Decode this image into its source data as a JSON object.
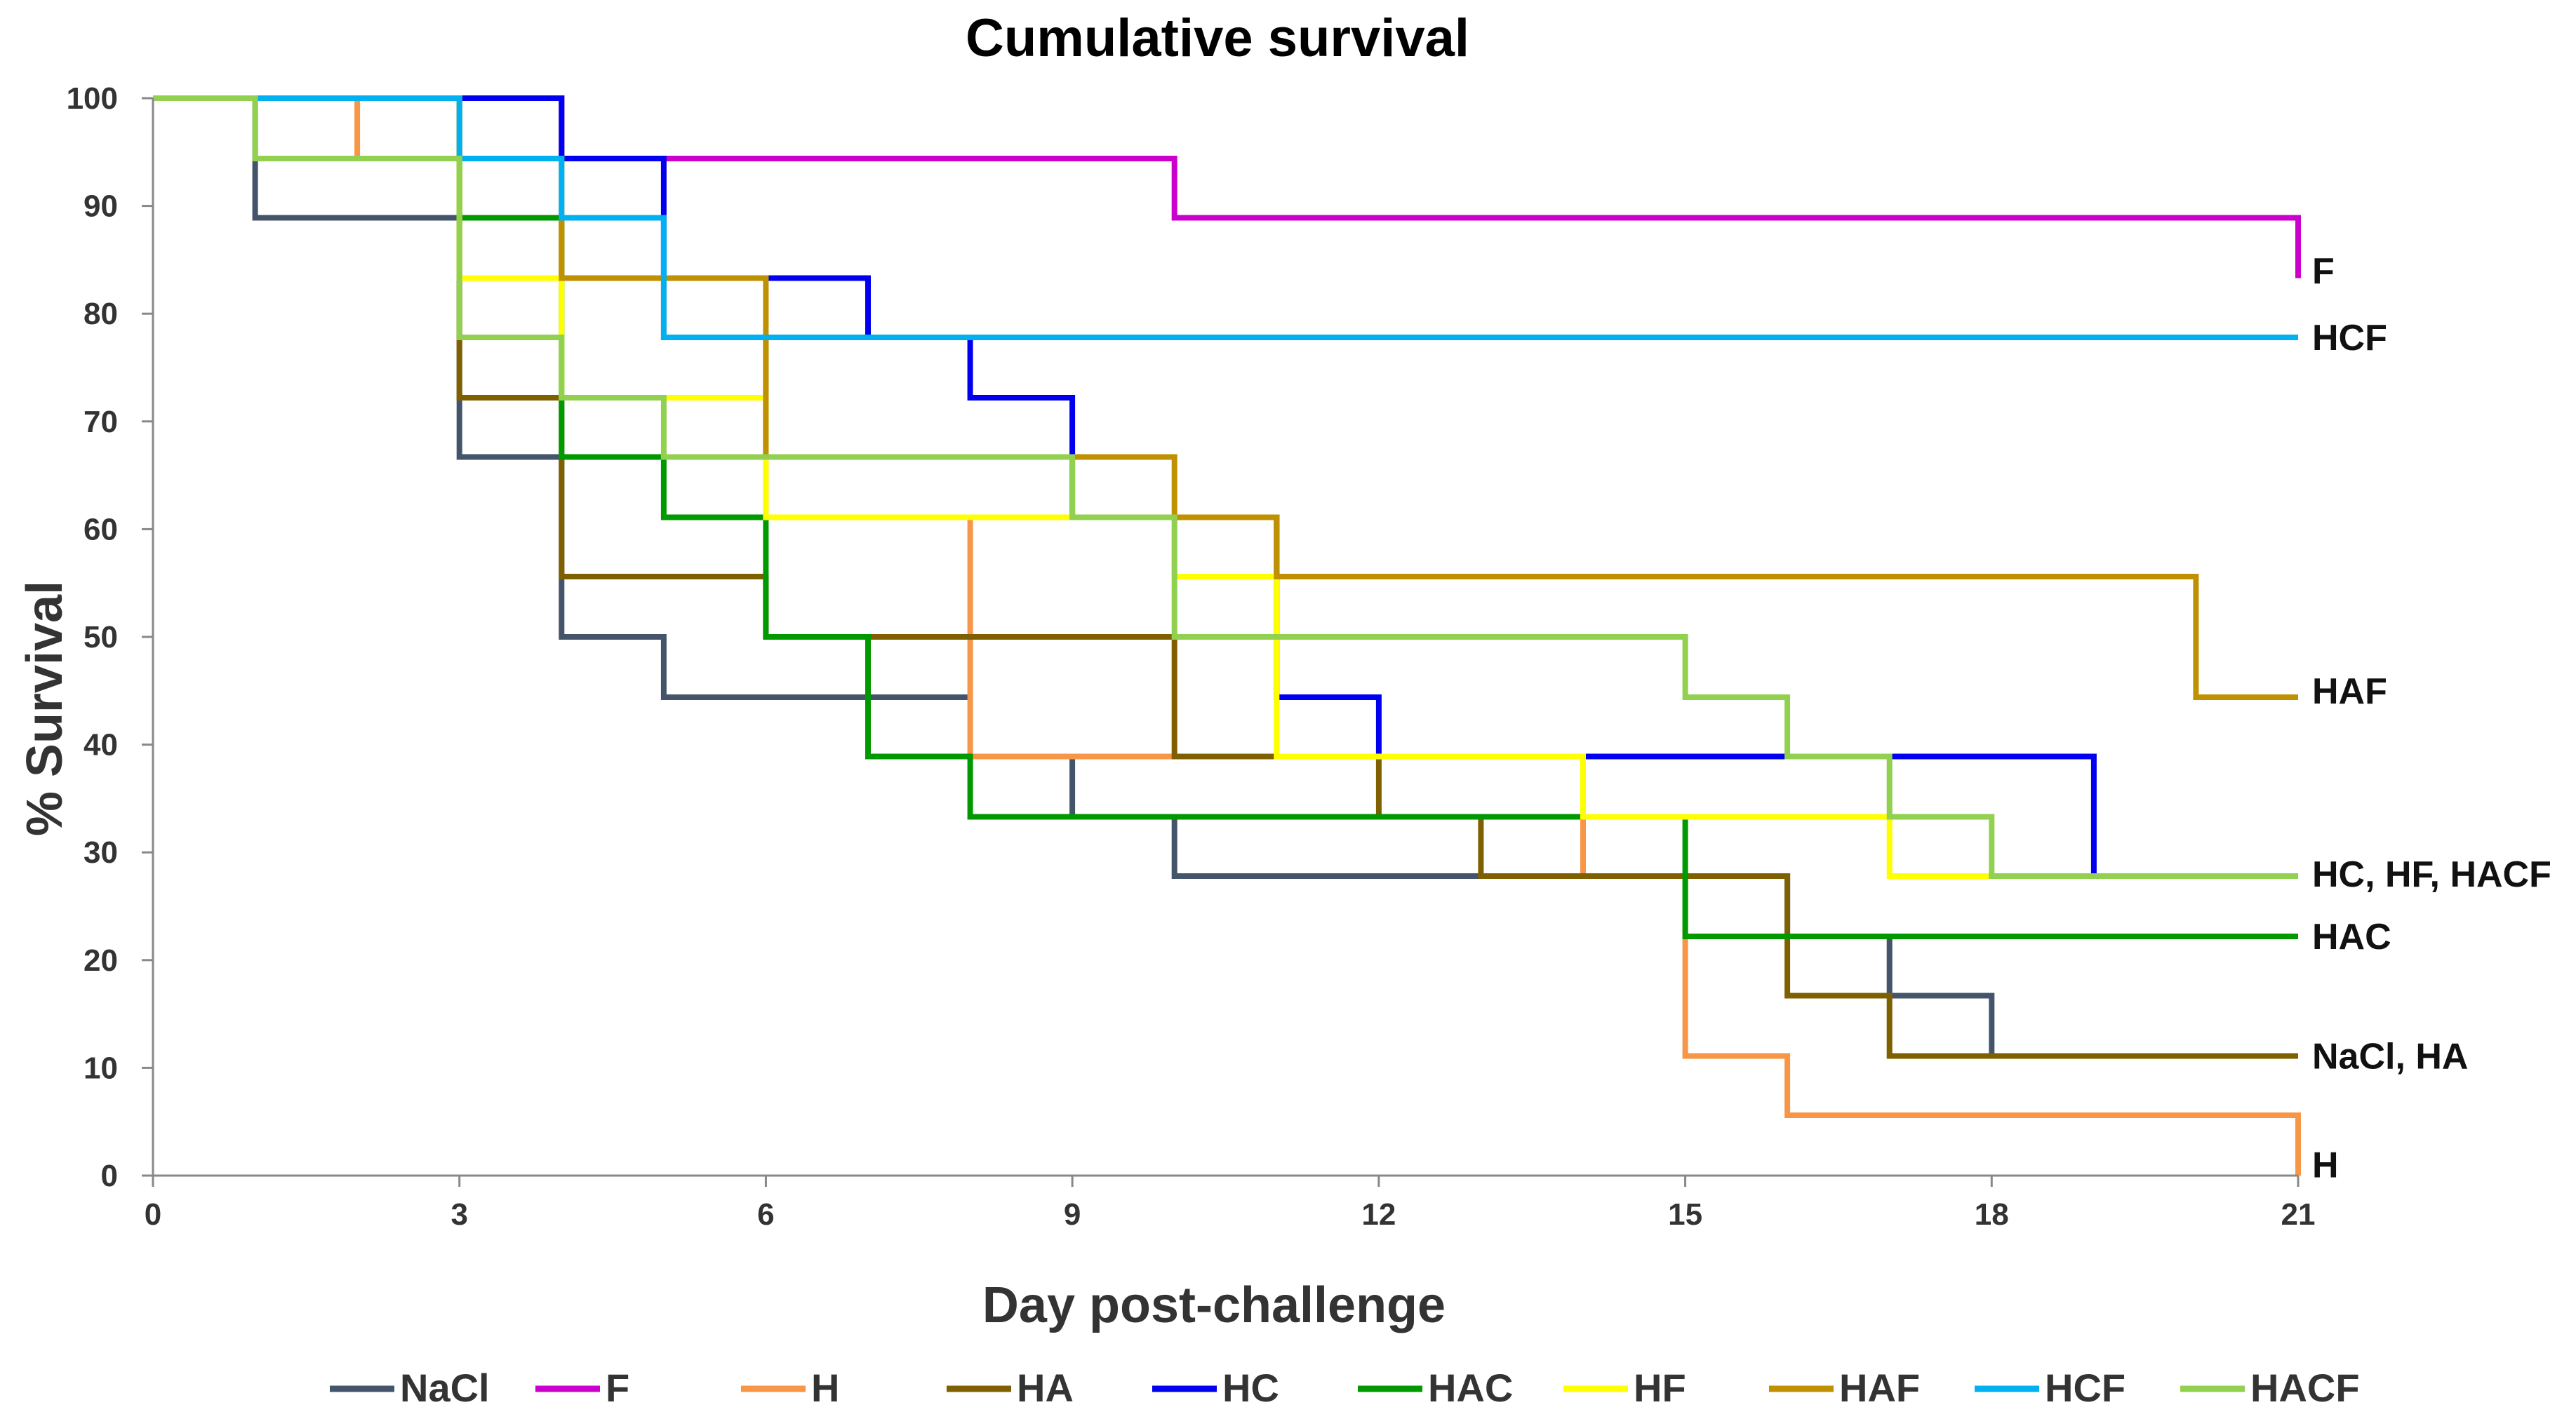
{
  "chart_data": {
    "type": "line",
    "step": true,
    "title": "Cumulative survival",
    "xlabel": "Day post-challenge",
    "ylabel": "% Survival",
    "xlim": [
      0,
      21
    ],
    "ylim": [
      0,
      100
    ],
    "xticks": [
      0,
      3,
      6,
      9,
      12,
      15,
      18,
      21
    ],
    "yticks": [
      0,
      10,
      20,
      30,
      40,
      50,
      60,
      70,
      80,
      90,
      100
    ],
    "legend_position": "bottom",
    "series": [
      {
        "name": "NaCl",
        "color": "#44546a",
        "points": [
          [
            0,
            100
          ],
          [
            1,
            100
          ],
          [
            1,
            88.9
          ],
          [
            3,
            88.9
          ],
          [
            3,
            66.7
          ],
          [
            4,
            66.7
          ],
          [
            4,
            50
          ],
          [
            5,
            50
          ],
          [
            5,
            44.4
          ],
          [
            8,
            44.4
          ]
        ],
        "extra_segments": [
          [
            [
              9,
              38.9
            ],
            [
              9,
              33.3
            ],
            [
              10,
              33.3
            ],
            [
              10,
              27.8
            ],
            [
              16,
              27.8
            ],
            [
              16,
              22.2
            ],
            [
              17,
              22.2
            ],
            [
              17,
              16.7
            ],
            [
              18,
              16.7
            ],
            [
              18,
              11.1
            ],
            [
              21,
              11.1
            ]
          ]
        ]
      },
      {
        "name": "F",
        "color": "#cc00cc",
        "points": [
          [
            0,
            100
          ],
          [
            4,
            100
          ],
          [
            4,
            94.4
          ],
          [
            10,
            94.4
          ],
          [
            10,
            88.9
          ],
          [
            21,
            88.9
          ],
          [
            21,
            83.3
          ]
        ]
      },
      {
        "name": "H",
        "color": "#f79646",
        "points": [
          [
            0,
            100
          ],
          [
            2,
            100
          ],
          [
            2,
            94.4
          ],
          [
            3,
            94.4
          ],
          [
            3,
            88.9
          ],
          [
            4,
            88.9
          ],
          [
            4,
            83.3
          ],
          [
            5,
            83.3
          ],
          [
            5,
            77.8
          ],
          [
            6,
            77.8
          ],
          [
            6,
            61.1
          ],
          [
            8,
            61.1
          ],
          [
            8,
            50
          ],
          [
            8,
            38.9
          ],
          [
            10,
            38.9
          ],
          [
            10,
            38.9
          ],
          [
            14,
            38.9
          ],
          [
            14,
            27.8
          ],
          [
            15,
            27.8
          ],
          [
            15,
            11.1
          ],
          [
            16,
            11.1
          ],
          [
            16,
            5.6
          ],
          [
            21,
            5.6
          ],
          [
            21,
            0
          ]
        ]
      },
      {
        "name": "HA",
        "color": "#7f6000",
        "points": [
          [
            0,
            100
          ],
          [
            3,
            100
          ],
          [
            3,
            77.8
          ],
          [
            3,
            72.2
          ],
          [
            4,
            72.2
          ],
          [
            4,
            55.6
          ],
          [
            6,
            55.6
          ],
          [
            6,
            50
          ],
          [
            10,
            50
          ],
          [
            10,
            38.9
          ],
          [
            12,
            38.9
          ],
          [
            12,
            33.3
          ],
          [
            13,
            33.3
          ],
          [
            13,
            27.8
          ],
          [
            16,
            27.8
          ],
          [
            16,
            16.7
          ],
          [
            17,
            16.7
          ],
          [
            17,
            11.1
          ],
          [
            21,
            11.1
          ]
        ]
      },
      {
        "name": "HC",
        "color": "#0000ee",
        "points": [
          [
            0,
            100
          ],
          [
            4,
            100
          ],
          [
            4,
            94.4
          ],
          [
            5,
            94.4
          ],
          [
            5,
            83.3
          ],
          [
            7,
            83.3
          ],
          [
            7,
            77.8
          ],
          [
            8,
            77.8
          ],
          [
            8,
            72.2
          ],
          [
            9,
            72.2
          ],
          [
            9,
            61.1
          ],
          [
            11,
            61.1
          ],
          [
            11,
            44.4
          ],
          [
            12,
            44.4
          ],
          [
            12,
            38.9
          ],
          [
            19,
            38.9
          ],
          [
            19,
            27.8
          ],
          [
            21,
            27.8
          ]
        ]
      },
      {
        "name": "HAC",
        "color": "#009900",
        "points": [
          [
            0,
            100
          ],
          [
            3,
            100
          ],
          [
            3,
            88.9
          ],
          [
            4,
            88.9
          ],
          [
            4,
            66.7
          ],
          [
            5,
            66.7
          ],
          [
            5,
            61.1
          ],
          [
            6,
            61.1
          ],
          [
            6,
            50
          ],
          [
            7,
            50
          ],
          [
            7,
            38.9
          ],
          [
            8,
            38.9
          ],
          [
            8,
            33.3
          ],
          [
            15,
            33.3
          ],
          [
            15,
            22.2
          ],
          [
            21,
            22.2
          ]
        ]
      },
      {
        "name": "HF",
        "color": "#ffff00",
        "points": [
          [
            0,
            100
          ],
          [
            3,
            100
          ],
          [
            3,
            83.3
          ],
          [
            4,
            83.3
          ],
          [
            4,
            72.2
          ],
          [
            6,
            72.2
          ],
          [
            6,
            61.1
          ],
          [
            10,
            61.1
          ],
          [
            10,
            55.6
          ],
          [
            11,
            55.6
          ],
          [
            11,
            38.9
          ],
          [
            14,
            38.9
          ],
          [
            14,
            33.3
          ],
          [
            17,
            33.3
          ],
          [
            17,
            27.8
          ],
          [
            21,
            27.8
          ]
        ]
      },
      {
        "name": "HAF",
        "color": "#bf9000",
        "points": [
          [
            0,
            100
          ],
          [
            3,
            100
          ],
          [
            3,
            94.4
          ],
          [
            4,
            94.4
          ],
          [
            4,
            83.3
          ],
          [
            6,
            83.3
          ],
          [
            6,
            66.7
          ],
          [
            10,
            66.7
          ],
          [
            10,
            61.1
          ],
          [
            11,
            61.1
          ],
          [
            11,
            55.6
          ],
          [
            20,
            55.6
          ],
          [
            20,
            44.4
          ],
          [
            21,
            44.4
          ]
        ]
      },
      {
        "name": "HCF",
        "color": "#00b0f0",
        "points": [
          [
            0,
            100
          ],
          [
            3,
            100
          ],
          [
            3,
            94.4
          ],
          [
            4,
            94.4
          ],
          [
            4,
            88.9
          ],
          [
            5,
            88.9
          ],
          [
            5,
            77.8
          ],
          [
            21,
            77.8
          ]
        ]
      },
      {
        "name": "HACF",
        "color": "#92d050",
        "points": [
          [
            0,
            100
          ],
          [
            1,
            100
          ],
          [
            1,
            94.4
          ],
          [
            3,
            94.4
          ],
          [
            3,
            77.8
          ],
          [
            4,
            77.8
          ],
          [
            4,
            72.2
          ],
          [
            5,
            72.2
          ],
          [
            5,
            66.7
          ],
          [
            9,
            66.7
          ],
          [
            9,
            61.1
          ],
          [
            10,
            61.1
          ],
          [
            10,
            50
          ],
          [
            15,
            50
          ],
          [
            15,
            44.4
          ],
          [
            16,
            44.4
          ],
          [
            16,
            38.9
          ],
          [
            17,
            38.9
          ],
          [
            17,
            33.3
          ],
          [
            18,
            33.3
          ],
          [
            18,
            27.8
          ],
          [
            21,
            27.8
          ]
        ]
      }
    ],
    "end_labels": [
      {
        "text": "F",
        "y": 84
      },
      {
        "text": "HCF",
        "y": 77.8
      },
      {
        "text": "HAF",
        "y": 45
      },
      {
        "text": "HC, HF, HACF",
        "y": 28
      },
      {
        "text": "HAC",
        "y": 22.2
      },
      {
        "text": "NaCl, HA",
        "y": 11.1
      },
      {
        "text": "H",
        "y": 1
      }
    ]
  }
}
